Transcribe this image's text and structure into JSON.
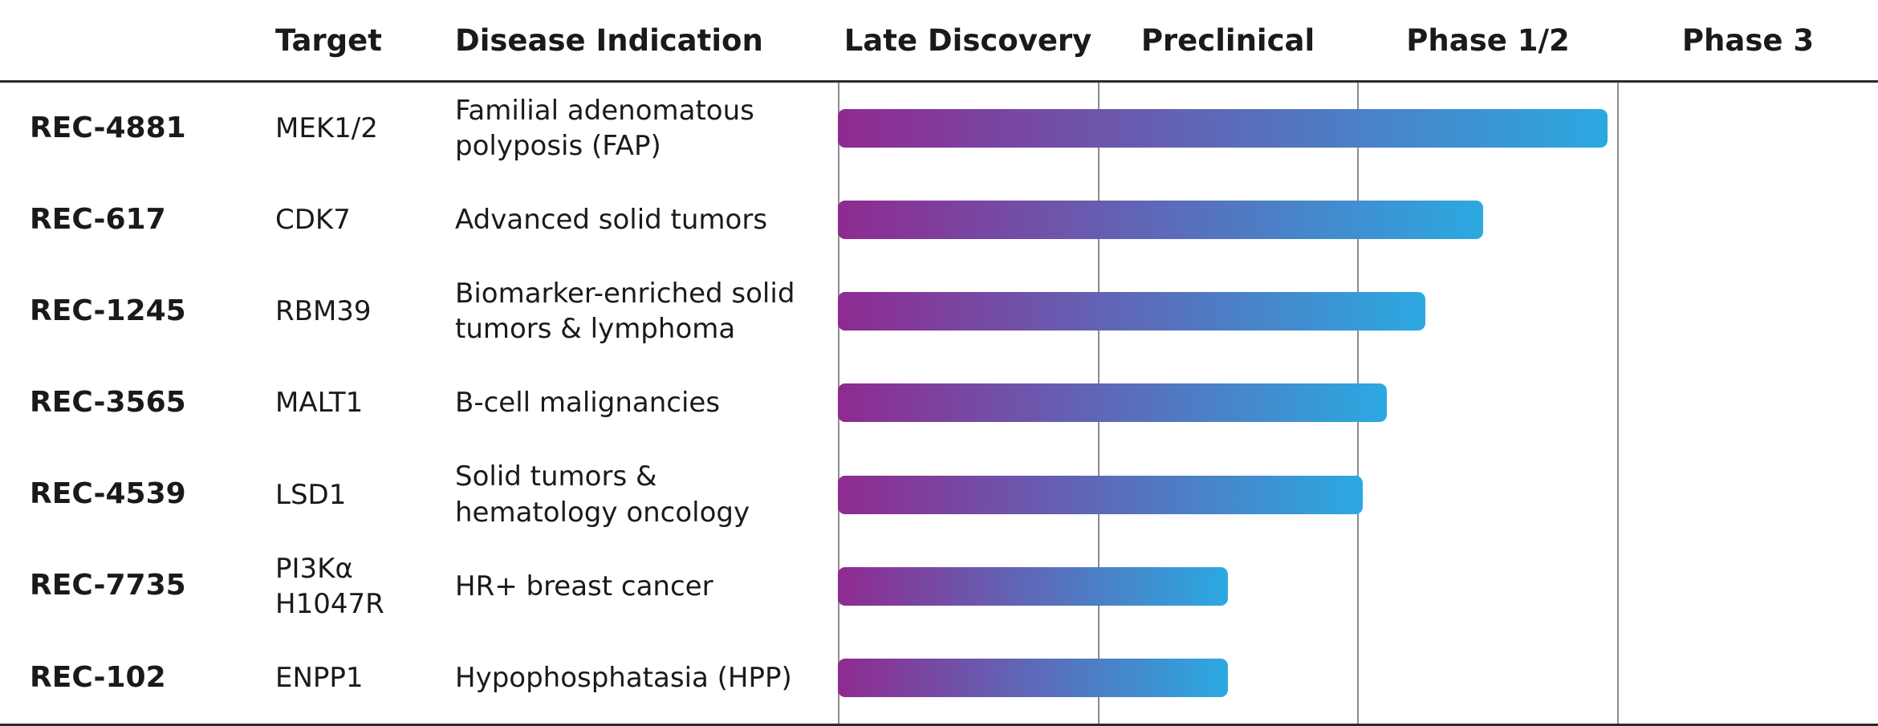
{
  "header": {
    "target_label": "Target",
    "indication_label": "Disease Indication"
  },
  "chart_data": {
    "type": "bar",
    "title": "",
    "orientation": "horizontal",
    "stages": [
      "Late Discovery",
      "Preclinical",
      "Phase 1/2",
      "Phase 3"
    ],
    "x_range_stage_units": [
      0,
      4
    ],
    "grid": "vertical-stage-boundaries",
    "bar_colors": {
      "start": "#8F2A90",
      "end": "#2BA9E1"
    },
    "rows": [
      {
        "program": "REC-4881",
        "target": "MEK1/2",
        "indication": "Familial adenomatous polyposis (FAP)",
        "stage_progress": 2.96,
        "stage_reached": "Phase 1/2"
      },
      {
        "program": "REC-617",
        "target": "CDK7",
        "indication": "Advanced solid tumors",
        "stage_progress": 2.48,
        "stage_reached": "Phase 1/2"
      },
      {
        "program": "REC-1245",
        "target": "RBM39",
        "indication": "Biomarker-enriched solid tumors & lymphoma",
        "stage_progress": 2.26,
        "stage_reached": "Phase 1/2"
      },
      {
        "program": "REC-3565",
        "target": "MALT1",
        "indication": "B-cell malignancies",
        "stage_progress": 2.11,
        "stage_reached": "Phase 1/2"
      },
      {
        "program": "REC-4539",
        "target": "LSD1",
        "indication": "Solid tumors & hematology oncology",
        "stage_progress": 2.02,
        "stage_reached": "Phase 1/2"
      },
      {
        "program": "REC-7735",
        "target": "PI3Kα H1047R",
        "indication": "HR+ breast cancer",
        "stage_progress": 1.5,
        "stage_reached": "Preclinical"
      },
      {
        "program": "REC-102",
        "target": "ENPP1",
        "indication": "Hypophosphatasia (HPP)",
        "stage_progress": 1.5,
        "stage_reached": "Preclinical"
      }
    ]
  }
}
